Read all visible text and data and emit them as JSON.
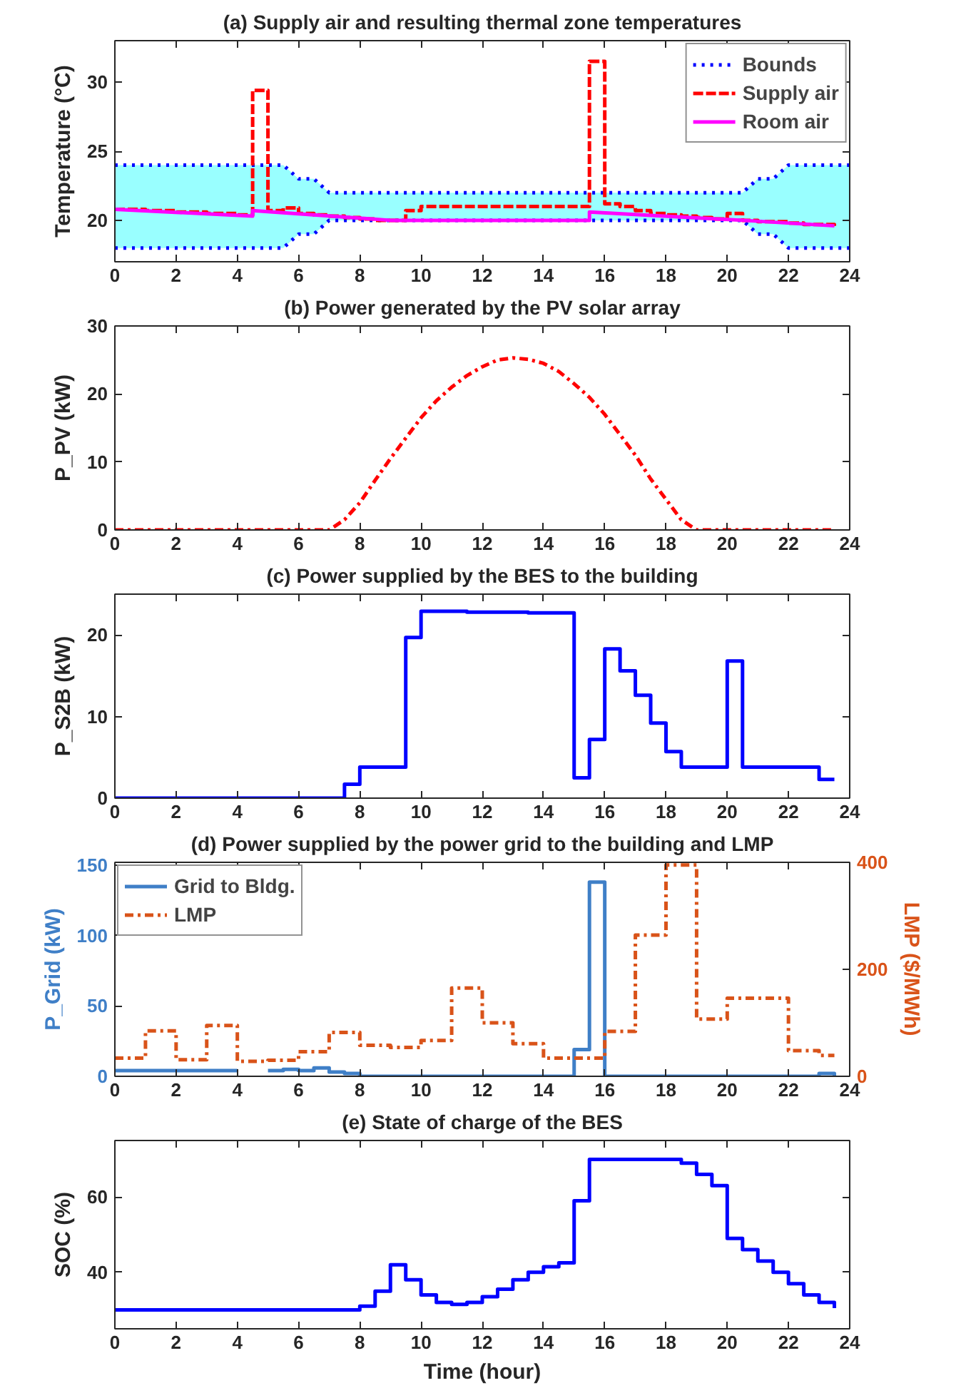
{
  "chart_data": [
    {
      "type": "step",
      "title": "(a) Supply air and resulting thermal zone temperatures",
      "ylabel": "Temperature (°C)",
      "x": [
        0,
        0.5,
        1,
        1.5,
        2,
        2.5,
        3,
        3.5,
        4,
        4.5,
        5,
        5.5,
        6,
        6.5,
        7,
        7.5,
        8,
        8.5,
        9,
        9.5,
        10,
        10.5,
        11,
        11.5,
        12,
        12.5,
        13,
        13.5,
        14,
        14.5,
        15,
        15.5,
        16,
        16.5,
        17,
        17.5,
        18,
        18.5,
        19,
        19.5,
        20,
        20.5,
        21,
        21.5,
        22,
        22.5,
        23,
        23.5
      ],
      "xlim": [
        0,
        24
      ],
      "xticks": [
        0,
        2,
        4,
        6,
        8,
        10,
        12,
        14,
        16,
        18,
        20,
        22,
        24
      ],
      "ylim": [
        17,
        33
      ],
      "yticks": [
        20,
        25,
        30
      ],
      "legend": "top right",
      "series": [
        {
          "name": "Bounds",
          "type": "line",
          "line_style": "dotted",
          "color": "#0000ff",
          "x": [
            0,
            5.5,
            6,
            6.5,
            7,
            20.5,
            21,
            21.5,
            22,
            24
          ],
          "values": [
            24,
            24,
            23,
            23,
            22,
            22,
            23,
            23,
            24,
            24
          ],
          "lower": [
            18,
            18,
            19,
            19,
            20,
            20,
            19,
            19,
            18,
            18
          ],
          "upper": [
            24,
            24,
            23,
            23,
            22,
            22,
            23,
            23,
            24,
            24
          ]
        },
        {
          "type": "line",
          "line_style": "dotted",
          "color": "#0000ff",
          "x": [
            0,
            5.5,
            6,
            6.5,
            7,
            20.5,
            21,
            21.5,
            22,
            24
          ],
          "values": [
            18,
            18,
            19,
            19,
            20,
            20,
            19,
            19,
            18,
            18
          ]
        },
        {
          "name": "Supply air",
          "line_style": "dashed",
          "color": "#ff0000",
          "values": [
            20.8,
            20.8,
            20.7,
            20.7,
            20.6,
            20.6,
            20.5,
            20.5,
            20.4,
            29.4,
            20.7,
            20.9,
            20.5,
            20.4,
            20.3,
            20.2,
            20.1,
            20.0,
            20.0,
            20.7,
            21.0,
            21.0,
            21.0,
            21.0,
            21.0,
            21.0,
            21.0,
            21.0,
            21.0,
            21.0,
            21.0,
            31.5,
            21.2,
            21.0,
            20.7,
            20.5,
            20.4,
            20.3,
            20.2,
            20.1,
            20.5,
            20.0,
            19.9,
            19.9,
            19.8,
            19.7,
            19.7,
            19.6
          ]
        },
        {
          "name": "Room air",
          "type": "line",
          "line_style": "solid",
          "color": "#ff00ff",
          "x": [
            0,
            4.5,
            4.5,
            9,
            15.5,
            15.5,
            20.5,
            23.5
          ],
          "values": [
            20.8,
            20.3,
            20.7,
            20.0,
            20.0,
            20.6,
            20.0,
            19.6
          ]
        }
      ]
    },
    {
      "type": "line",
      "title": "(b) Power generated by the PV solar array",
      "ylabel": "P_PV (kW)",
      "xlim": [
        0,
        24
      ],
      "xticks": [
        0,
        2,
        4,
        6,
        8,
        10,
        12,
        14,
        16,
        18,
        20,
        22,
        24
      ],
      "ylim": [
        0,
        30
      ],
      "yticks": [
        0,
        10,
        20,
        30
      ],
      "series": [
        {
          "line_style": "dashdot",
          "color": "#ff0000",
          "x": [
            0,
            7,
            7.5,
            8,
            8.5,
            9,
            9.5,
            10,
            10.5,
            11,
            11.5,
            12,
            12.5,
            13,
            13.5,
            14,
            14.5,
            15,
            15.5,
            16,
            16.5,
            17,
            17.5,
            18,
            18.5,
            19,
            23.5
          ],
          "values": [
            0,
            0,
            1.5,
            4,
            7.3,
            10.5,
            13.5,
            16.5,
            19,
            21,
            22.7,
            24,
            25,
            25.3,
            25.1,
            24.5,
            23.3,
            21.5,
            19.5,
            17,
            14,
            11,
            7.5,
            4.5,
            1.5,
            0,
            0
          ]
        }
      ]
    },
    {
      "type": "step",
      "title": "(c) Power supplied by the BES to the building",
      "ylabel": "P_S2B (kW)",
      "x": [
        0,
        0.5,
        1,
        1.5,
        2,
        2.5,
        3,
        3.5,
        4,
        4.5,
        5,
        5.5,
        6,
        6.5,
        7,
        7.5,
        8,
        8.5,
        9,
        9.5,
        10,
        10.5,
        11,
        11.5,
        12,
        12.5,
        13,
        13.5,
        14,
        14.5,
        15,
        15.5,
        16,
        16.5,
        17,
        17.5,
        18,
        18.5,
        19,
        19.5,
        20,
        20.5,
        21,
        21.5,
        22,
        22.5,
        23,
        23.5
      ],
      "xlim": [
        0,
        24
      ],
      "xticks": [
        0,
        2,
        4,
        6,
        8,
        10,
        12,
        14,
        16,
        18,
        20,
        22,
        24
      ],
      "ylim": [
        0,
        25
      ],
      "yticks": [
        0,
        10,
        20
      ],
      "series": [
        {
          "line_style": "solid",
          "color": "#0000ff",
          "values": [
            0,
            0,
            0,
            0,
            0,
            0,
            0,
            0,
            0,
            0,
            0,
            0,
            0,
            0,
            0,
            1.7,
            3.8,
            3.8,
            3.8,
            19.7,
            22.9,
            22.9,
            22.9,
            22.8,
            22.8,
            22.8,
            22.8,
            22.7,
            22.7,
            22.7,
            2.5,
            7.2,
            18.3,
            15.6,
            12.6,
            9.2,
            5.7,
            3.8,
            3.8,
            3.8,
            16.8,
            3.8,
            3.8,
            3.8,
            3.8,
            3.8,
            2.3,
            2.3
          ]
        }
      ]
    },
    {
      "type": "step",
      "title": "(d) Power supplied by the power grid to the building and LMP",
      "ylabel": "P_Grid (kW)",
      "y2label": "LMP ($/MWh)",
      "x": [
        0,
        0.5,
        1,
        1.5,
        2,
        2.5,
        3,
        3.5,
        4,
        4.5,
        5,
        5.5,
        6,
        6.5,
        7,
        7.5,
        8,
        8.5,
        9,
        9.5,
        10,
        10.5,
        11,
        11.5,
        12,
        12.5,
        13,
        13.5,
        14,
        14.5,
        15,
        15.5,
        16,
        16.5,
        17,
        17.5,
        18,
        18.5,
        19,
        19.5,
        20,
        20.5,
        21,
        21.5,
        22,
        22.5,
        23,
        23.5
      ],
      "xlim": [
        0,
        24
      ],
      "xticks": [
        0,
        2,
        4,
        6,
        8,
        10,
        12,
        14,
        16,
        18,
        20,
        22,
        24
      ],
      "ylim": [
        0,
        152
      ],
      "yticks": [
        0,
        50,
        100,
        150
      ],
      "y2lim": [
        0,
        400
      ],
      "y2ticks": [
        0,
        200,
        400
      ],
      "legend": "top left",
      "series": [
        {
          "name": "Grid to Bldg.",
          "line_style": "solid",
          "color": "#3f7fc7",
          "values": [
            4,
            4,
            4,
            4,
            4,
            4,
            4,
            4,
            4,
            null,
            4,
            5,
            4,
            6,
            3,
            2,
            0,
            0,
            0,
            0,
            0,
            0,
            0,
            0,
            0,
            0,
            0,
            0,
            0,
            0,
            19,
            138,
            0,
            0,
            0,
            0,
            0,
            0,
            0,
            0,
            0,
            0,
            0,
            0,
            0,
            0,
            2,
            0
          ]
        },
        {
          "name": "LMP",
          "axis": "y2",
          "line_style": "dashdot",
          "color": "#d95319",
          "x": [
            0,
            1,
            2,
            3,
            4,
            5,
            6,
            7,
            8,
            9,
            10,
            11,
            12,
            13,
            14,
            15,
            16,
            17,
            18,
            19,
            20,
            21,
            22,
            23,
            23.5
          ],
          "values": [
            34,
            85,
            31,
            95,
            28,
            30,
            46,
            82,
            58,
            54,
            67,
            165,
            100,
            61,
            34,
            34,
            84,
            264,
            395,
            107,
            146,
            146,
            48,
            39,
            39
          ]
        }
      ]
    },
    {
      "type": "step",
      "title": "(e) State of charge of the BES",
      "ylabel": "SOC (%)",
      "xlabel": "Time (hour)",
      "x": [
        0,
        0.5,
        1,
        1.5,
        2,
        2.5,
        3,
        3.5,
        4,
        4.5,
        5,
        5.5,
        6,
        6.5,
        7,
        7.5,
        8,
        8.5,
        9,
        9.5,
        10,
        10.5,
        11,
        11.5,
        12,
        12.5,
        13,
        13.5,
        14,
        14.5,
        15,
        15.5,
        16,
        16.5,
        17,
        17.5,
        18,
        18.5,
        19,
        19.5,
        20,
        20.5,
        21,
        21.5,
        22,
        22.5,
        23,
        23.5
      ],
      "xlim": [
        0,
        24
      ],
      "xticks": [
        0,
        2,
        4,
        6,
        8,
        10,
        12,
        14,
        16,
        18,
        20,
        22,
        24
      ],
      "ylim": [
        25,
        75
      ],
      "yticks": [
        40,
        60
      ],
      "series": [
        {
          "line_style": "solid",
          "color": "#0000ff",
          "values": [
            30,
            30,
            30,
            30,
            30,
            30,
            30,
            30,
            30,
            30,
            30,
            30,
            30,
            30,
            30,
            30,
            31,
            35,
            42,
            38,
            34,
            32,
            31.5,
            32,
            33.5,
            35.5,
            38,
            40,
            41.5,
            42.5,
            59,
            70,
            70,
            70,
            70,
            70,
            70,
            69,
            66,
            63,
            49,
            46,
            43,
            40,
            37,
            34,
            32,
            30.5
          ]
        }
      ]
    }
  ]
}
